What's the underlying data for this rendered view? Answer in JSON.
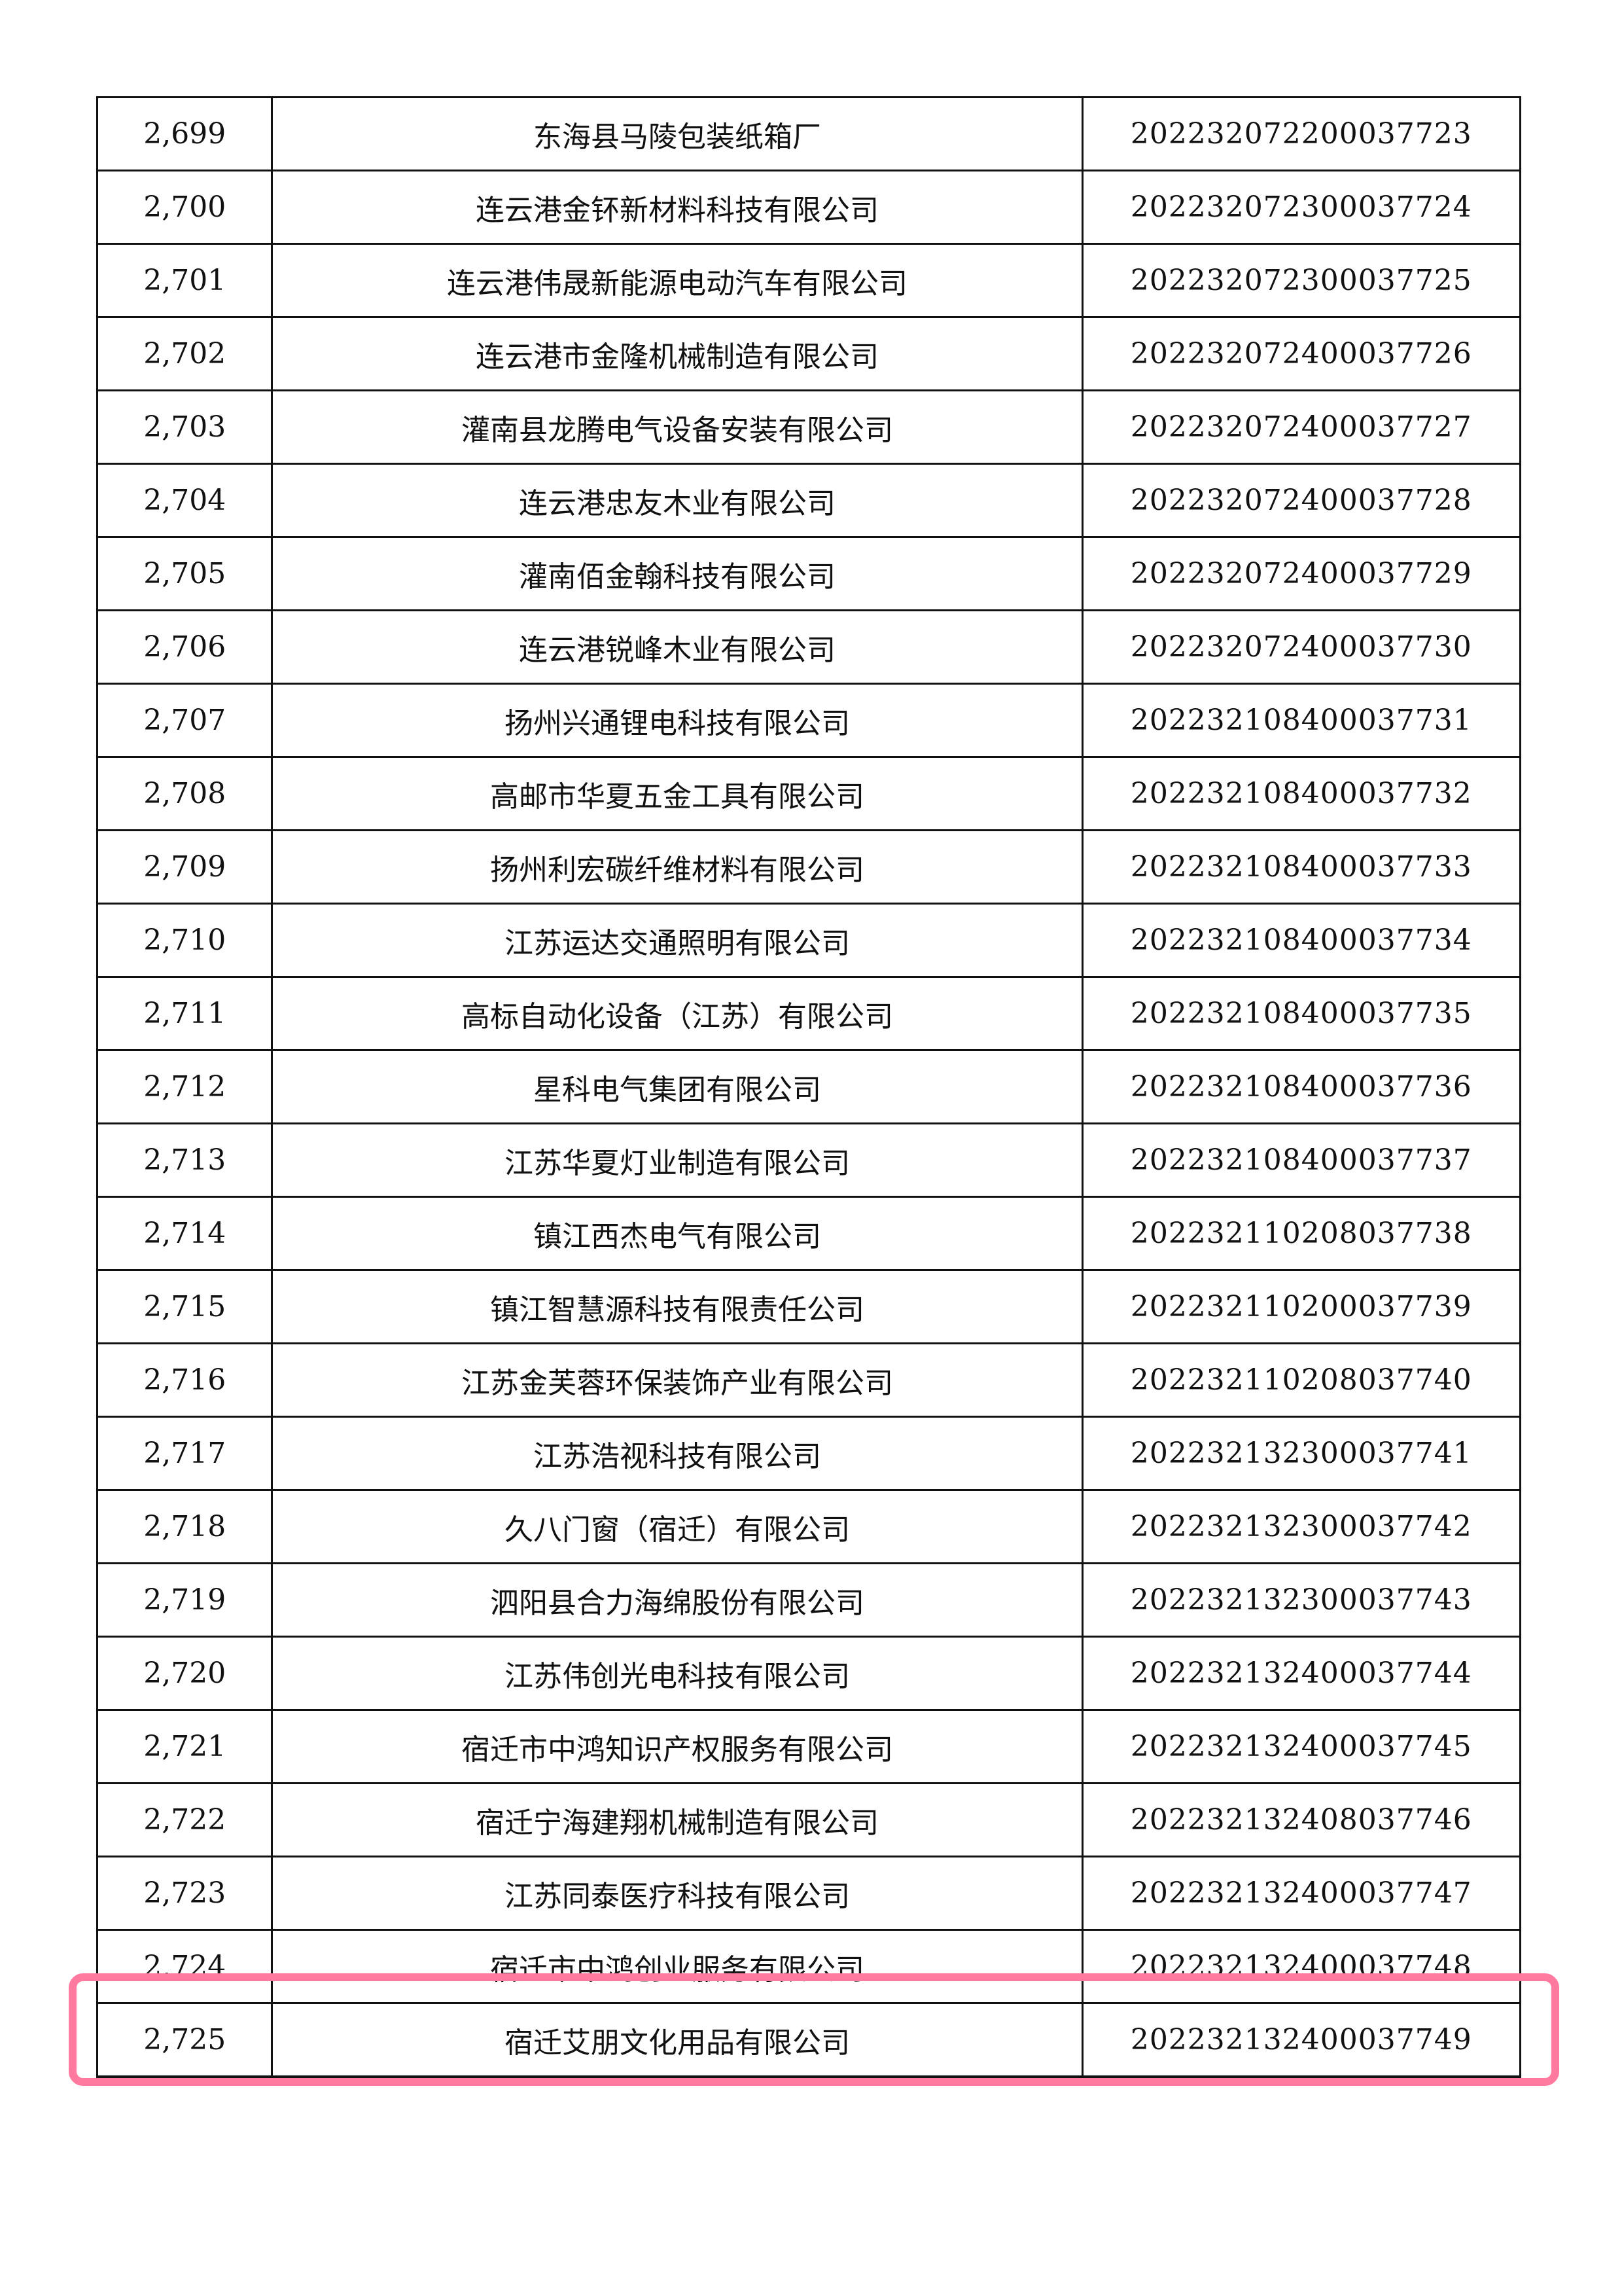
{
  "table": {
    "rows": [
      [
        "2,699",
        "东海县马陵包装纸箱厂",
        "202232072200037723"
      ],
      [
        "2,700",
        "连云港金钚新材料科技有限公司",
        "202232072300037724"
      ],
      [
        "2,701",
        "连云港伟晟新能源电动汽车有限公司",
        "202232072300037725"
      ],
      [
        "2,702",
        "连云港市金隆机械制造有限公司",
        "202232072400037726"
      ],
      [
        "2,703",
        "灌南县龙腾电气设备安装有限公司",
        "202232072400037727"
      ],
      [
        "2,704",
        "连云港忠友木业有限公司",
        "202232072400037728"
      ],
      [
        "2,705",
        "灌南佰金翰科技有限公司",
        "202232072400037729"
      ],
      [
        "2,706",
        "连云港锐峰木业有限公司",
        "202232072400037730"
      ],
      [
        "2,707",
        "扬州兴通锂电科技有限公司",
        "202232108400037731"
      ],
      [
        "2,708",
        "高邮市华夏五金工具有限公司",
        "202232108400037732"
      ],
      [
        "2,709",
        "扬州利宏碳纤维材料有限公司",
        "202232108400037733"
      ],
      [
        "2,710",
        "江苏运达交通照明有限公司",
        "202232108400037734"
      ],
      [
        "2,711",
        "高标自动化设备（江苏）有限公司",
        "202232108400037735"
      ],
      [
        "2,712",
        "星科电气集团有限公司",
        "202232108400037736"
      ],
      [
        "2,713",
        "江苏华夏灯业制造有限公司",
        "202232108400037737"
      ],
      [
        "2,714",
        "镇江西杰电气有限公司",
        "202232110208037738"
      ],
      [
        "2,715",
        "镇江智慧源科技有限责任公司",
        "202232110200037739"
      ],
      [
        "2,716",
        "江苏金芙蓉环保装饰产业有限公司",
        "202232110208037740"
      ],
      [
        "2,717",
        "江苏浩视科技有限公司",
        "202232132300037741"
      ],
      [
        "2,718",
        "久八门窗（宿迁）有限公司",
        "202232132300037742"
      ],
      [
        "2,719",
        "泗阳县合力海绵股份有限公司",
        "202232132300037743"
      ],
      [
        "2,720",
        "江苏伟创光电科技有限公司",
        "202232132400037744"
      ],
      [
        "2,721",
        "宿迁市中鸿知识产权服务有限公司",
        "202232132400037745"
      ],
      [
        "2,722",
        "宿迁宁海建翔机械制造有限公司",
        "202232132408037746"
      ],
      [
        "2,723",
        "江苏同泰医疗科技有限公司",
        "202232132400037747"
      ],
      [
        "2,724",
        "宿迁市中鸿创业服务有限公司",
        "202232132400037748"
      ],
      [
        "2,725",
        "宿迁艾朋文化用品有限公司",
        "202232132400037749"
      ]
    ],
    "highlighted_row": "2,724"
  },
  "colors": {
    "highlight": "#ff7a9e"
  }
}
